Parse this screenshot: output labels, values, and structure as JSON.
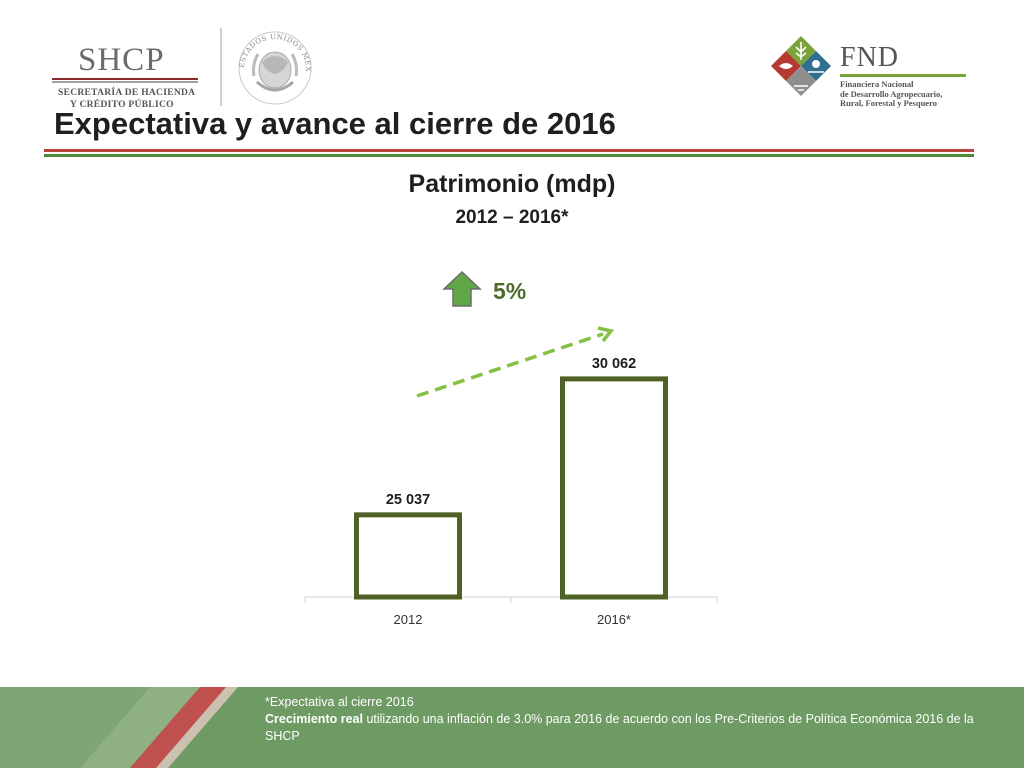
{
  "header": {
    "shcp": {
      "name": "SHCP",
      "line1": "SECRETARÍA DE HACIENDA",
      "line2": "Y CRÉDITO PÚBLICO"
    },
    "seal": {
      "icon": "national-seal-icon",
      "text": "ESTADOS UNIDOS MEXICANOS"
    },
    "fnd": {
      "name": "FND",
      "line1": "Financiera Nacional",
      "line2": "de Desarrollo Agropecuario,",
      "line3": "Rural, Forestal y Pesquero"
    }
  },
  "slide": {
    "title": "Expectativa y avance al cierre de 2016"
  },
  "growth": {
    "label": "5%",
    "icon": "up-arrow-icon",
    "arrow_color": "#5fa845"
  },
  "chart_data": {
    "type": "bar",
    "title": "Patrimonio (mdp)",
    "subtitle": "2012 – 2016*",
    "categories": [
      "2012",
      "2016*"
    ],
    "values": [
      25037,
      30062
    ],
    "data_labels": [
      "25 037",
      "30 062"
    ],
    "xlabel": "",
    "ylabel": "",
    "ylim": [
      22000,
      31500
    ],
    "grid": false,
    "legend": "none",
    "bar_style": "outline",
    "bar_stroke_color": "#4e6126",
    "trend_color": "#84c143"
  },
  "footer": {
    "note1": "*Expectativa al cierre 2016",
    "note2_bold": "Crecimiento real",
    "note2_rest": " utilizando una inflación de 3.0% para 2016 de acuerdo con los Pre-Criterios de Política Económica 2016 de la SHCP"
  },
  "colors": {
    "title_rule_red": "#b8453a",
    "title_rule_green": "#4f8a3a",
    "footer_bg": "#6e9a63",
    "footer_stripe_red": "#c0504d"
  }
}
